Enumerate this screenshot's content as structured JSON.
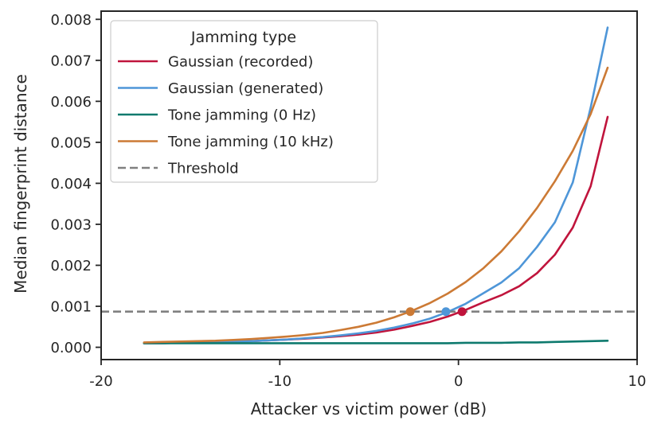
{
  "chart_data": {
    "type": "line",
    "title": "",
    "xlabel": "Attacker vs victim power (dB)",
    "ylabel": "Median fingerprint distance",
    "xlim": [
      -20,
      10
    ],
    "ylim": [
      -0.0003,
      0.0082
    ],
    "xticks": [
      -20,
      -10,
      0,
      10
    ],
    "xtick_labels": [
      "-20",
      "-10",
      "0",
      "10"
    ],
    "yticks": [
      0.0,
      0.001,
      0.002,
      0.003,
      0.004,
      0.005,
      0.006,
      0.007,
      0.008
    ],
    "ytick_labels": [
      "0.000",
      "0.001",
      "0.002",
      "0.003",
      "0.004",
      "0.005",
      "0.006",
      "0.007",
      "0.008"
    ],
    "grid": false,
    "legend": {
      "title": "Jamming type",
      "position": "top-left"
    },
    "x": [
      -17.6,
      -16.6,
      -15.6,
      -14.6,
      -13.6,
      -12.6,
      -11.6,
      -10.6,
      -9.6,
      -8.6,
      -7.6,
      -6.6,
      -5.6,
      -4.6,
      -3.6,
      -2.6,
      -1.6,
      -0.6,
      0.4,
      1.4,
      2.4,
      3.4,
      4.4,
      5.4,
      6.4,
      7.4,
      8.35
    ],
    "series": [
      {
        "name": "Gaussian (recorded)",
        "color": "#c0143c",
        "values": [
          0.0001,
          0.0001,
          0.00011,
          0.00012,
          0.00013,
          0.00014,
          0.00015,
          0.00017,
          0.00019,
          0.00021,
          0.00024,
          0.00027,
          0.00031,
          0.00036,
          0.00043,
          0.00052,
          0.00062,
          0.00075,
          0.00091,
          0.0011,
          0.00127,
          0.00149,
          0.00181,
          0.00226,
          0.00292,
          0.00393,
          0.00562
        ]
      },
      {
        "name": "Gaussian (generated)",
        "color": "#4e96d8",
        "values": [
          0.0001,
          0.0001,
          0.00011,
          0.00012,
          0.00013,
          0.00014,
          0.00015,
          0.00017,
          0.00019,
          0.00022,
          0.00025,
          0.00029,
          0.00034,
          0.0004,
          0.00048,
          0.00058,
          0.0007,
          0.00086,
          0.00106,
          0.00132,
          0.00158,
          0.00193,
          0.00245,
          0.00305,
          0.00402,
          0.00585,
          0.0078
        ]
      },
      {
        "name": "Tone jamming (0 Hz)",
        "color": "#0e7a6e",
        "values": [
          0.0001,
          0.0001,
          0.0001,
          0.0001,
          0.0001,
          0.0001,
          0.0001,
          0.0001,
          0.0001,
          0.0001,
          0.0001,
          0.0001,
          0.0001,
          0.0001,
          0.0001,
          0.0001,
          0.0001,
          0.0001,
          0.00011,
          0.00011,
          0.00011,
          0.00012,
          0.00012,
          0.00013,
          0.00014,
          0.00015,
          0.00016
        ]
      },
      {
        "name": "Tone jamming (10 kHz)",
        "color": "#cc7a35",
        "values": [
          0.00012,
          0.00013,
          0.00014,
          0.00015,
          0.00016,
          0.00018,
          0.0002,
          0.00023,
          0.00026,
          0.0003,
          0.00035,
          0.00042,
          0.0005,
          0.0006,
          0.00073,
          0.00089,
          0.00108,
          0.00131,
          0.00159,
          0.00193,
          0.00234,
          0.00283,
          0.0034,
          0.00405,
          0.00479,
          0.00569,
          0.00682
        ]
      }
    ],
    "threshold": {
      "name": "Threshold",
      "value": 0.00087,
      "color": "#808080"
    },
    "crossings": [
      {
        "series": "Gaussian (recorded)",
        "x": 0.2,
        "y": 0.00087
      },
      {
        "series": "Gaussian (generated)",
        "x": -0.7,
        "y": 0.00087
      },
      {
        "series": "Tone jamming (10 kHz)",
        "x": -2.7,
        "y": 0.00087
      }
    ]
  }
}
